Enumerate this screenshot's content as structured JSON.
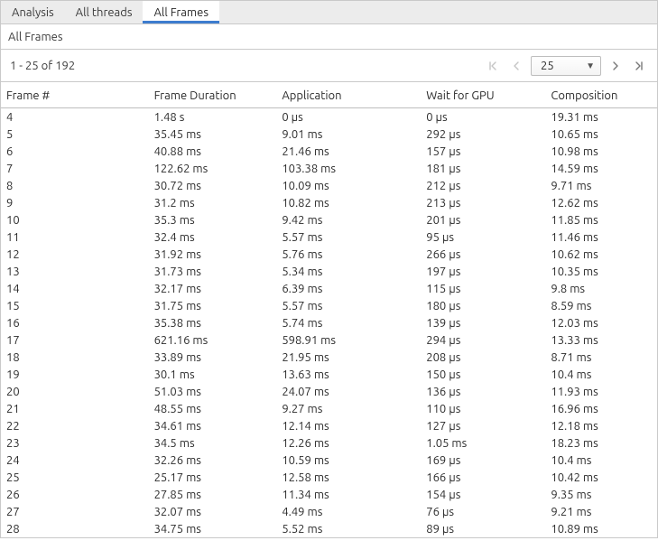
{
  "tabs": {
    "items": [
      {
        "label": "Analysis",
        "active": false
      },
      {
        "label": "All threads",
        "active": false
      },
      {
        "label": "All Frames",
        "active": true
      }
    ]
  },
  "subheader": {
    "label": "All Frames"
  },
  "pagination": {
    "range_text": "1 - 25 of 192",
    "page_size": "25",
    "first_disabled": true,
    "prev_disabled": true,
    "next_disabled": false,
    "last_disabled": false
  },
  "table": {
    "columns": [
      "Frame #",
      "Frame Duration",
      "Application",
      "Wait for GPU",
      "Composition"
    ],
    "rows": [
      [
        "4",
        "1.48 s",
        "0 µs",
        "0 µs",
        "19.31 ms"
      ],
      [
        "5",
        "35.45 ms",
        "9.01 ms",
        "292 µs",
        "10.65 ms"
      ],
      [
        "6",
        "40.88 ms",
        "21.46 ms",
        "157 µs",
        "10.98 ms"
      ],
      [
        "7",
        "122.62 ms",
        "103.38 ms",
        "181 µs",
        "14.59 ms"
      ],
      [
        "8",
        "30.72 ms",
        "10.09 ms",
        "212 µs",
        "9.71 ms"
      ],
      [
        "9",
        "31.2 ms",
        "10.82 ms",
        "213 µs",
        "12.62 ms"
      ],
      [
        "10",
        "35.3 ms",
        "9.42 ms",
        "201 µs",
        "11.85 ms"
      ],
      [
        "11",
        "32.4 ms",
        "5.57 ms",
        "95 µs",
        "11.46 ms"
      ],
      [
        "12",
        "31.92 ms",
        "5.76 ms",
        "266 µs",
        "10.62 ms"
      ],
      [
        "13",
        "31.73 ms",
        "5.34 ms",
        "197 µs",
        "10.35 ms"
      ],
      [
        "14",
        "32.17 ms",
        "6.39 ms",
        "115 µs",
        "9.8 ms"
      ],
      [
        "15",
        "31.75 ms",
        "5.57 ms",
        "180 µs",
        "8.59 ms"
      ],
      [
        "16",
        "35.38 ms",
        "5.74 ms",
        "139 µs",
        "12.03 ms"
      ],
      [
        "17",
        "621.16 ms",
        "598.91 ms",
        "294 µs",
        "13.33 ms"
      ],
      [
        "18",
        "33.89 ms",
        "21.95 ms",
        "208 µs",
        "8.71 ms"
      ],
      [
        "19",
        "30.1 ms",
        "13.63 ms",
        "150 µs",
        "10.4 ms"
      ],
      [
        "20",
        "51.03 ms",
        "24.07 ms",
        "136 µs",
        "11.93 ms"
      ],
      [
        "21",
        "48.55 ms",
        "9.27 ms",
        "110 µs",
        "16.96 ms"
      ],
      [
        "22",
        "34.61 ms",
        "12.14 ms",
        "127 µs",
        "12.18 ms"
      ],
      [
        "23",
        "34.5 ms",
        "12.26 ms",
        "1.05 ms",
        "18.23 ms"
      ],
      [
        "24",
        "32.26 ms",
        "10.59 ms",
        "169 µs",
        "10.4 ms"
      ],
      [
        "25",
        "25.17 ms",
        "12.58 ms",
        "166 µs",
        "10.42 ms"
      ],
      [
        "26",
        "27.85 ms",
        "11.34 ms",
        "154 µs",
        "9.35 ms"
      ],
      [
        "27",
        "32.07 ms",
        "4.49 ms",
        "76 µs",
        "9.21 ms"
      ],
      [
        "28",
        "34.75 ms",
        "5.52 ms",
        "89 µs",
        "10.89 ms"
      ]
    ]
  }
}
